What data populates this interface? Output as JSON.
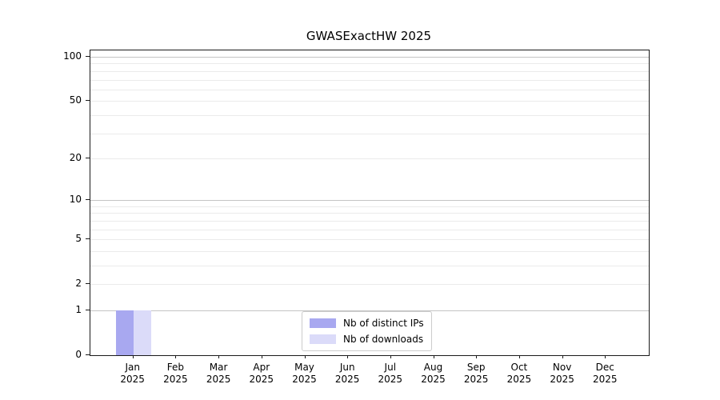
{
  "title": "GWASExactHW 2025",
  "chart_data": {
    "type": "bar",
    "title": "GWASExactHW 2025",
    "categories": [
      "Jan 2025",
      "Feb 2025",
      "Mar 2025",
      "Apr 2025",
      "May 2025",
      "Jun 2025",
      "Jul 2025",
      "Aug 2025",
      "Sep 2025",
      "Oct 2025",
      "Nov 2025",
      "Dec 2025"
    ],
    "series": [
      {
        "name": "Nb of distinct IPs",
        "color": "#a8a8f0",
        "values": [
          1,
          0,
          0,
          0,
          0,
          0,
          0,
          0,
          0,
          0,
          0,
          0
        ]
      },
      {
        "name": "Nb of downloads",
        "color": "#dbdbf9",
        "values": [
          1,
          0,
          0,
          0,
          0,
          0,
          0,
          0,
          0,
          0,
          0,
          0
        ]
      }
    ],
    "xlabel": "",
    "ylabel": "",
    "yscale": "log1p",
    "ylim": [
      0,
      111
    ],
    "yticks_major": [
      0,
      1,
      2,
      5,
      10,
      20,
      50,
      100
    ],
    "yticks_minor": [
      3,
      4,
      6,
      7,
      8,
      9,
      30,
      40,
      60,
      70,
      80,
      90
    ],
    "gridlines_emphasized": [
      1,
      10,
      100
    ],
    "grid": "horizontal",
    "legend_position": "bottom-center",
    "colors": {
      "grid_minor": "#ebebeb",
      "grid_major": "#c4c4c4",
      "spine": "#1a1a1a",
      "background": "#ffffff"
    }
  }
}
